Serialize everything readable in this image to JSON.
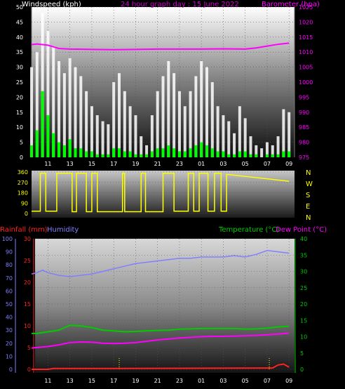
{
  "header": {
    "wind_title": "Windspeed (kph)",
    "graph_title": "24 hour graph day : 15 June 2022",
    "baro_title": "Barometer (hpa)"
  },
  "bottom_header": {
    "rain_title": "Rainfall (mm)",
    "humidity_title": "Humidity",
    "temp_title": "Temperature (°C)",
    "dew_title": "Dew Point (°C)"
  },
  "compass": [
    "N",
    "W",
    "S",
    "E",
    "N"
  ],
  "colors": {
    "wind_title": "#ffffff",
    "graph_title": "#cc00cc",
    "baro": "#ff00ff",
    "windspeed": "#ffffff",
    "gust": "#00ff00",
    "winddir": "#ffff00",
    "rain": "#ff2222",
    "humidity": "#8080ff",
    "temperature": "#00cc00",
    "dewpoint": "#ff00ff",
    "compass": "#ffff00"
  },
  "chart_data": [
    {
      "type": "bar",
      "title": "24 hour graph day : 15 June 2022",
      "x_ticks": [
        "11",
        "13",
        "15",
        "17",
        "19",
        "21",
        "23",
        "01",
        "03",
        "05",
        "07",
        "09"
      ],
      "y_left": {
        "label": "Windspeed (kph)",
        "ticks": [
          0,
          5,
          10,
          15,
          20,
          25,
          30,
          35,
          40,
          45,
          50
        ],
        "range": [
          0,
          50
        ]
      },
      "y_right": {
        "label": "Barometer (hpa)",
        "ticks": [
          975,
          980,
          985,
          990,
          995,
          1000,
          1005,
          1010,
          1015,
          1020,
          1025
        ],
        "range": [
          975,
          1025
        ]
      },
      "series": [
        {
          "name": "Windspeed (kph)",
          "hours": [
            9.5,
            10,
            10.5,
            11,
            11.5,
            12,
            12.5,
            13,
            13.5,
            14,
            14.5,
            15,
            15.5,
            16,
            16.5,
            17,
            17.5,
            18,
            18.5,
            19,
            19.5,
            20,
            20.5,
            21,
            21.5,
            22,
            22.5,
            23,
            23.5,
            24,
            24.5,
            25,
            25.5,
            26,
            26.5,
            27,
            27.5,
            28,
            28.5,
            29,
            29.5,
            30,
            30.5,
            31,
            31.5,
            32,
            32.5,
            33
          ],
          "values": [
            30,
            35,
            48,
            42,
            37,
            32,
            28,
            33,
            30,
            27,
            22,
            17,
            14,
            12,
            11,
            25,
            28,
            22,
            17,
            14,
            7,
            4,
            14,
            22,
            27,
            32,
            28,
            22,
            17,
            22,
            27,
            32,
            30,
            25,
            17,
            14,
            12,
            8,
            17,
            13,
            7,
            4,
            3,
            5,
            4,
            7,
            16,
            15
          ]
        },
        {
          "name": "Gust",
          "hours": [
            9.5,
            10,
            10.5,
            11,
            11.5,
            12,
            12.5,
            13,
            13.5,
            14,
            14.5,
            15,
            15.5,
            16,
            16.5,
            17,
            17.5,
            18,
            18.5,
            19,
            19.5,
            20,
            20.5,
            21,
            21.5,
            22,
            22.5,
            23,
            23.5,
            24,
            24.5,
            25,
            25.5,
            26,
            26.5,
            27,
            27.5,
            28,
            28.5,
            29,
            29.5,
            30,
            30.5,
            31,
            31.5,
            32,
            32.5,
            33
          ],
          "values": [
            4,
            9,
            22,
            14,
            8,
            5,
            4,
            6,
            3,
            3,
            2,
            2,
            1,
            1,
            1,
            3,
            3,
            2,
            2,
            1,
            1,
            1,
            2,
            3,
            3,
            4,
            3,
            2,
            2,
            3,
            4,
            5,
            4,
            3,
            2,
            2,
            1,
            1,
            2,
            2,
            1,
            1,
            0,
            1,
            1,
            1,
            2,
            2
          ]
        },
        {
          "name": "Barometer (hpa)",
          "hours": [
            9.5,
            10,
            11,
            12,
            13,
            15,
            17,
            19,
            21,
            23,
            25,
            27,
            29,
            30,
            31,
            32,
            33
          ],
          "values": [
            1012.5,
            1012.7,
            1012.3,
            1011.2,
            1011.0,
            1010.9,
            1010.8,
            1010.9,
            1011.0,
            1011.0,
            1011.0,
            1011.1,
            1011.0,
            1011.4,
            1012.0,
            1012.6,
            1013.0
          ]
        }
      ]
    },
    {
      "type": "line",
      "title": "Wind direction",
      "x_ticks": [],
      "y": {
        "ticks": [
          0,
          90,
          180,
          270,
          360
        ],
        "range": [
          0,
          360
        ]
      },
      "labels_right": [
        "N",
        "W",
        "S",
        "E",
        "N"
      ],
      "series": [
        {
          "name": "Wind direction",
          "hours": [
            9.5,
            10.3,
            10.3,
            10.8,
            10.8,
            11.8,
            11.8,
            13.2,
            13.2,
            13.6,
            13.6,
            14.5,
            14.5,
            15.0,
            15.0,
            15.5,
            15.5,
            17.8,
            17.8,
            18.0,
            18.0,
            19.5,
            19.5,
            19.9,
            19.9,
            21.5,
            21.5,
            22.5,
            22.5,
            23.8,
            23.8,
            24.3,
            24.3,
            24.8,
            24.8,
            25.6,
            25.6,
            26.2,
            26.2,
            26.8,
            26.8,
            27.3,
            27.3,
            33
          ],
          "values": [
            20,
            20,
            350,
            350,
            20,
            20,
            350,
            350,
            15,
            15,
            350,
            350,
            15,
            15,
            350,
            350,
            15,
            15,
            350,
            350,
            15,
            15,
            350,
            350,
            15,
            15,
            350,
            350,
            20,
            20,
            350,
            350,
            20,
            20,
            350,
            350,
            20,
            20,
            350,
            350,
            20,
            20,
            340,
            280
          ]
        }
      ]
    },
    {
      "type": "line",
      "title": "",
      "x_ticks": [
        "11",
        "13",
        "15",
        "17",
        "19",
        "21",
        "23",
        "01",
        "03",
        "05",
        "07",
        "09"
      ],
      "y_left_outer": {
        "label": "Humidity",
        "ticks": [
          0,
          10,
          20,
          30,
          40,
          50,
          60,
          70,
          80,
          90,
          100
        ],
        "range": [
          0,
          100
        ]
      },
      "y_left_inner": {
        "label": "Rainfall (mm)",
        "ticks": [
          0,
          5,
          10,
          15,
          20,
          25,
          30
        ],
        "range": [
          0,
          30
        ]
      },
      "y_right": {
        "label": "Temperature (°C)",
        "ticks": [
          0,
          5,
          10,
          15,
          20,
          25,
          30,
          35,
          40
        ],
        "range": [
          0,
          40
        ]
      },
      "series": [
        {
          "name": "Humidity",
          "hours": [
            9.5,
            10,
            10.5,
            11,
            12,
            13,
            14,
            15,
            16,
            17,
            18,
            19,
            20,
            21,
            22,
            23,
            24,
            25,
            26,
            27,
            28,
            29,
            30,
            31,
            32,
            33
          ],
          "values": [
            73,
            74,
            76,
            74,
            72,
            71,
            72,
            73,
            75,
            77,
            79,
            81,
            82,
            83,
            84,
            85,
            85,
            86,
            86,
            86,
            87,
            86,
            88,
            91,
            90,
            89
          ]
        },
        {
          "name": "Temperature (°C)",
          "hours": [
            9.5,
            10,
            11,
            12,
            13,
            14,
            15,
            16,
            17,
            18,
            19,
            20,
            21,
            22,
            23,
            24,
            25,
            26,
            27,
            28,
            29,
            30,
            31,
            32,
            33
          ],
          "values": [
            11,
            11,
            11.5,
            12,
            13.5,
            13.3,
            12.8,
            12.0,
            11.8,
            11.5,
            11.6,
            11.8,
            11.9,
            12.0,
            12.3,
            12.4,
            12.5,
            12.5,
            12.5,
            12.5,
            12.3,
            12.4,
            12.6,
            13.0,
            13.2
          ]
        },
        {
          "name": "Dew Point (°C)",
          "hours": [
            9.5,
            10,
            11,
            12,
            13,
            14,
            15,
            16,
            17,
            18,
            19,
            20,
            21,
            22,
            23,
            24,
            25,
            26,
            27,
            28,
            29,
            30,
            31,
            32,
            33
          ],
          "values": [
            6.5,
            6.7,
            7.0,
            7.5,
            8.2,
            8.4,
            8.3,
            8.0,
            7.9,
            8.0,
            8.2,
            8.6,
            9.0,
            9.3,
            9.6,
            9.8,
            10.0,
            10.1,
            10.1,
            10.2,
            10.3,
            10.4,
            10.6,
            10.8,
            11.1
          ]
        },
        {
          "name": "Rainfall (mm)",
          "hours": [
            9.5,
            11,
            11.5,
            17,
            31.5,
            32,
            32.5,
            33
          ],
          "values": [
            0,
            0,
            0.2,
            0.2,
            0.3,
            1.0,
            1.2,
            0.5
          ]
        }
      ]
    }
  ]
}
